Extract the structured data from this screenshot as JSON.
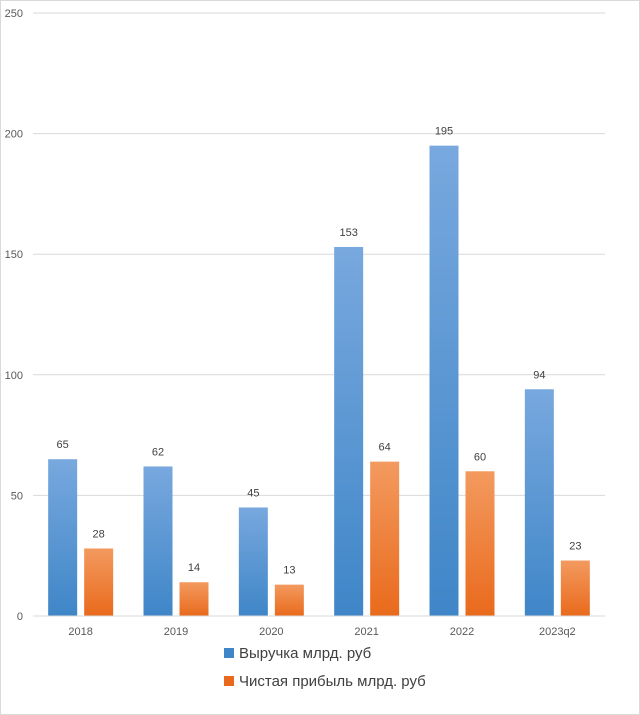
{
  "chart_data": {
    "type": "bar",
    "title": "",
    "xlabel": "",
    "ylabel": "",
    "ylim": [
      0,
      250
    ],
    "yticks": [
      0,
      50,
      100,
      150,
      200,
      250
    ],
    "grid": true,
    "legend_position": "bottom",
    "categories": [
      "2018",
      "2019",
      "2020",
      "2021",
      "2022",
      "2023q2"
    ],
    "series": [
      {
        "name": "Выручка млрд. руб",
        "color_top": "#78a8de",
        "color_bottom": "#3f86c8",
        "values": [
          65,
          62,
          45,
          153,
          195,
          94
        ]
      },
      {
        "name": "Чистая прибыль млрд. руб",
        "color_top": "#f39a5f",
        "color_bottom": "#e96a1c",
        "values": [
          28,
          14,
          13,
          64,
          60,
          23
        ]
      }
    ]
  }
}
